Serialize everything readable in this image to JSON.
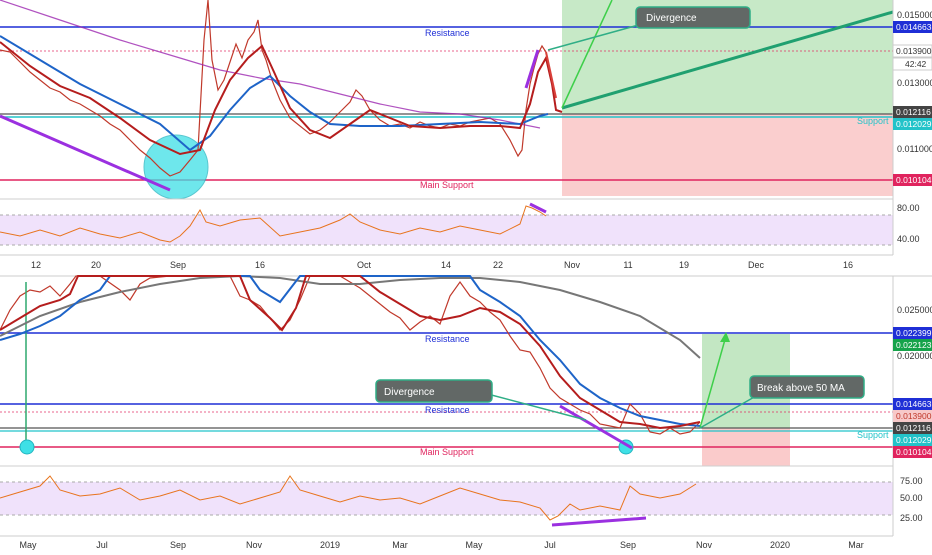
{
  "colors": {
    "price_line": "#d9403a",
    "ma_blue": "#1e64c8",
    "ma_red": "#b51d1d",
    "ma_purple": "#9c27b0",
    "ma_gray": "#777777",
    "resistance": "#1f2fd6",
    "support": "#22c3c9",
    "main_support": "#e0245e",
    "rsi": "#e8741e",
    "divergence": "#9b30e0",
    "green_zone": "#4caf50",
    "red_zone": "#ef5350",
    "callout_fill": "#626866",
    "callout_border": "#2fae86"
  },
  "top_chart": {
    "x_ticks": [
      "12",
      "20",
      "Sep",
      "16",
      "Oct",
      "14",
      "22",
      "Nov",
      "11",
      "19",
      "Dec",
      "16"
    ],
    "price_ticks": [
      "0.015000",
      "0.013000",
      "0.011000"
    ],
    "rsi_ticks": [
      "80.00",
      "40.00"
    ],
    "badges": [
      "0.014663",
      "0.013900",
      "42:42",
      "0.012116",
      "0.012029",
      "0.010104"
    ],
    "labels": {
      "resistance": "Resistance",
      "support": "Support",
      "main_support": "Main Support"
    },
    "callout": "Divergence"
  },
  "bottom_chart": {
    "x_ticks": [
      "May",
      "Jul",
      "Sep",
      "Nov",
      "2019",
      "Mar",
      "May",
      "Jul",
      "Sep",
      "Nov",
      "2020",
      "Mar"
    ],
    "price_ticks": [
      "0.025000",
      "0.020000"
    ],
    "rsi_ticks": [
      "75.00",
      "50.00",
      "25.00"
    ],
    "badges": [
      "0.022399",
      "0.022123",
      "0.014663",
      "0.013900",
      "0.012116",
      "0.012029",
      "0.010104"
    ],
    "labels": {
      "resistance_upper": "Resistance",
      "resistance": "Resistance",
      "support": "Support",
      "main_support": "Main Support"
    },
    "callouts": [
      "Divergence",
      "Break above 50 MA"
    ]
  },
  "chart_data": [
    {
      "type": "line",
      "series": [
        {
          "x": [
            0,
            10,
            20,
            30,
            40,
            50,
            60,
            70,
            80,
            90,
            100
          ],
          "values": [
            0.0141,
            0.0136,
            0.0129,
            0.0117,
            0.0111,
            0.0103,
            0.0138,
            0.0122,
            0.0123,
            0.0113,
            0.0139
          ]
        }
      ],
      "ylim": [
        0.0099,
        0.0153
      ],
      "reference_lines": [
        0.014663,
        0.0139,
        0.012116,
        0.012029,
        0.010104
      ],
      "rsi": {
        "values": [
          55,
          48,
          43,
          33,
          52,
          38,
          46,
          51,
          47,
          58,
          82,
          76
        ],
        "ylim": [
          20,
          90
        ]
      }
    },
    {
      "type": "line",
      "series": [
        {
          "x": [
            0,
            10,
            20,
            30,
            40,
            50,
            60,
            70,
            80,
            90
          ],
          "values": [
            0.0247,
            0.0265,
            0.0281,
            0.0262,
            0.028,
            0.0256,
            0.0202,
            0.0138,
            0.0117,
            0.0124
          ]
        }
      ],
      "ylim": [
        0.0095,
        0.0282
      ],
      "reference_lines": [
        0.022399,
        0.014663,
        0.0139,
        0.012116,
        0.012029,
        0.010104
      ],
      "rsi": {
        "values": [
          58,
          66,
          57,
          49,
          55,
          47,
          56,
          41,
          29,
          53,
          67
        ],
        "ylim": [
          15,
          85
        ]
      }
    }
  ]
}
